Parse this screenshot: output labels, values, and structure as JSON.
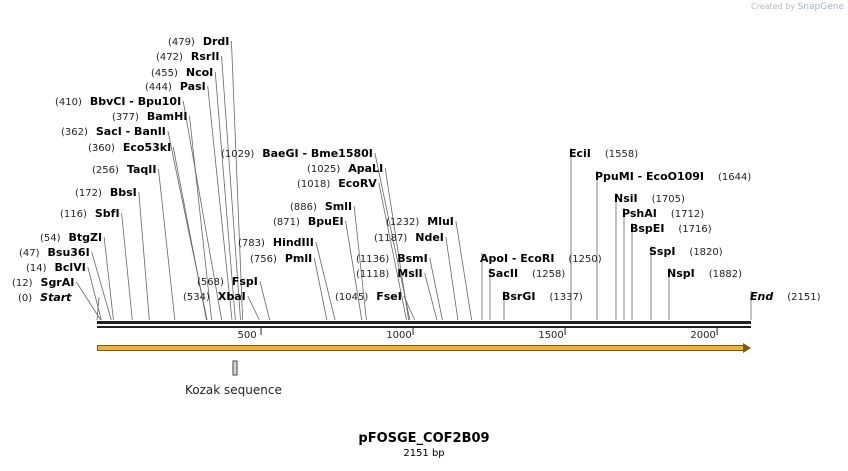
{
  "credit": {
    "prefix": "Created by",
    "brand": "SnapGene"
  },
  "plasmid": {
    "name": "pFOSGE_COF2B09",
    "size_label": "2151 bp",
    "length": 2151
  },
  "axis": {
    "ticks": [
      500,
      1000,
      1500,
      2000
    ]
  },
  "feature": {
    "label": "Kozak sequence"
  },
  "sites": [
    {
      "name": "Start",
      "pos": "(0)",
      "site": 0,
      "italic": true
    },
    {
      "name": "SgrAI",
      "pos": "(12)",
      "site": 12
    },
    {
      "name": "BclVI",
      "pos": "(14)",
      "site": 14
    },
    {
      "name": "Bsu36I",
      "pos": "(47)",
      "site": 47
    },
    {
      "name": "BtgZI",
      "pos": "(54)",
      "site": 54
    },
    {
      "name": "SbfI",
      "pos": "(116)",
      "site": 116
    },
    {
      "name": "BbsI",
      "pos": "(172)",
      "site": 172
    },
    {
      "name": "TaqII",
      "pos": "(256)",
      "site": 256
    },
    {
      "name": "Eco53kI",
      "pos": "(360)",
      "site": 360
    },
    {
      "name": "SacI - BanII",
      "pos": "(362)",
      "site": 362
    },
    {
      "name": "BamHI",
      "pos": "(377)",
      "site": 377
    },
    {
      "name": "BbvCI - Bpu10I",
      "pos": "(410)",
      "site": 410
    },
    {
      "name": "PasI",
      "pos": "(444)",
      "site": 444
    },
    {
      "name": "NcoI",
      "pos": "(455)",
      "site": 455
    },
    {
      "name": "RsrII",
      "pos": "(472)",
      "site": 472
    },
    {
      "name": "DrdI",
      "pos": "(479)",
      "site": 479
    },
    {
      "name": "XbaI",
      "pos": "(534)",
      "site": 534
    },
    {
      "name": "FspI",
      "pos": "(568)",
      "site": 568
    },
    {
      "name": "PmlI",
      "pos": "(756)",
      "site": 756
    },
    {
      "name": "HindIII",
      "pos": "(783)",
      "site": 783
    },
    {
      "name": "BpuEI",
      "pos": "(871)",
      "site": 871
    },
    {
      "name": "SmlI",
      "pos": "(886)",
      "site": 886
    },
    {
      "name": "EcoRV",
      "pos": "(1018)",
      "site": 1018
    },
    {
      "name": "ApaLI",
      "pos": "(1025)",
      "site": 1025
    },
    {
      "name": "BaeGI - Bme1580I",
      "pos": "(1029)",
      "site": 1029
    },
    {
      "name": "FseI",
      "pos": "(1045)",
      "site": 1045
    },
    {
      "name": "MslI",
      "pos": "(1118)",
      "site": 1118
    },
    {
      "name": "BsmI",
      "pos": "(1136)",
      "site": 1136
    },
    {
      "name": "NdeI",
      "pos": "(1187)",
      "site": 1187
    },
    {
      "name": "MluI",
      "pos": "(1232)",
      "site": 1232
    },
    {
      "name": "ApoI - EcoRI",
      "pos": "(1250)",
      "site": 1250
    },
    {
      "name": "SacII",
      "pos": "(1258)",
      "site": 1258
    },
    {
      "name": "BsrGI",
      "pos": "(1337)",
      "site": 1337
    },
    {
      "name": "EciI",
      "pos": "(1558)",
      "site": 1558
    },
    {
      "name": "PpuMI - EcoO109I",
      "pos": "(1644)",
      "site": 1644
    },
    {
      "name": "NsiI",
      "pos": "(1705)",
      "site": 1705
    },
    {
      "name": "PshAI",
      "pos": "(1712)",
      "site": 1712
    },
    {
      "name": "BspEI",
      "pos": "(1716)",
      "site": 1716
    },
    {
      "name": "SspI",
      "pos": "(1820)",
      "site": 1820
    },
    {
      "name": "NspI",
      "pos": "(1882)",
      "site": 1882
    },
    {
      "name": "End",
      "pos": "(2151)",
      "site": 2151,
      "italic": true
    }
  ]
}
